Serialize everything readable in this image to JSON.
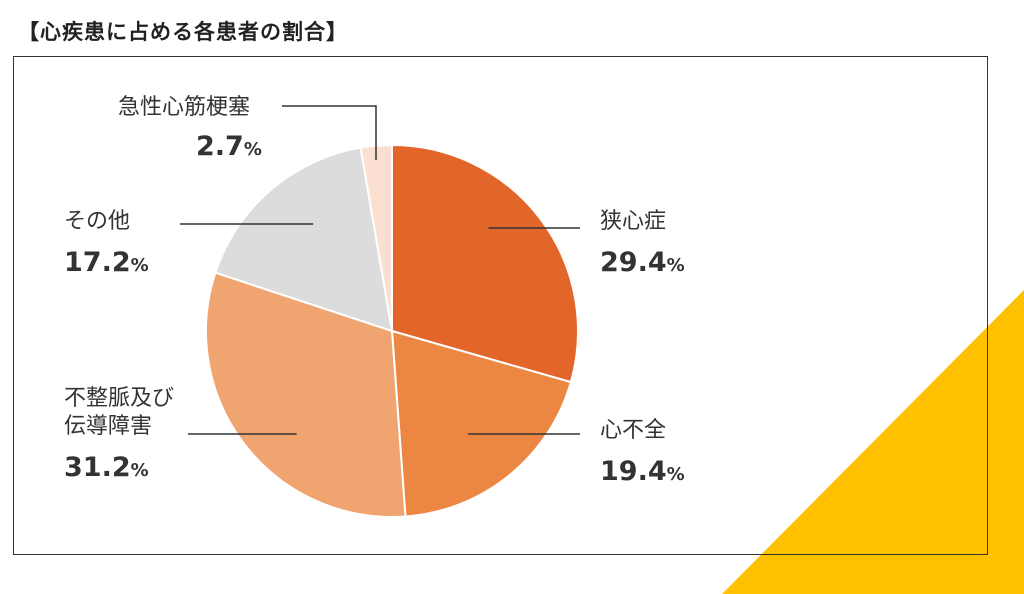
{
  "title": "【心疾患に占める各患者の割合】",
  "colors": {
    "accent_yellow": "#FFC000",
    "frame": "#333333"
  },
  "chart_data": {
    "type": "pie",
    "title": "【心疾患に占める各患者の割合】",
    "unit": "%",
    "slices": [
      {
        "label": "狭心症",
        "value": 29.4,
        "color": "#E2652A"
      },
      {
        "label": "心不全",
        "value": 19.4,
        "color": "#EC8743"
      },
      {
        "label": "不整脈及び\n伝導障害",
        "value": 31.2,
        "color": "#F0A46F"
      },
      {
        "label": "その他",
        "value": 17.2,
        "color": "#DCDCDC"
      },
      {
        "label": "急性心筋梗塞",
        "value": 2.7,
        "color": "#FBE0D2"
      }
    ],
    "start_angle_deg": 0,
    "direction": "clockwise"
  }
}
